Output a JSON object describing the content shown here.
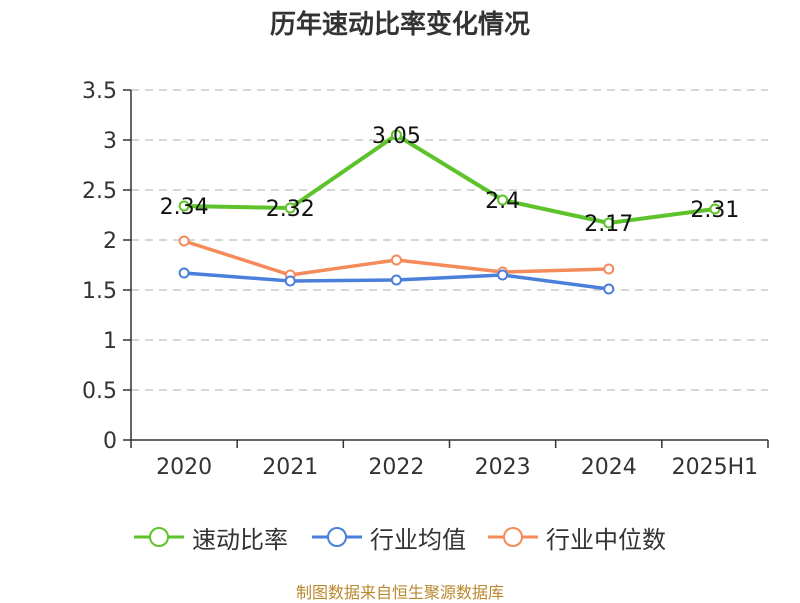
{
  "chart_data": {
    "type": "line",
    "title": "历年速动比率变化情况",
    "categories": [
      "2020",
      "2021",
      "2022",
      "2023",
      "2024",
      "2025H1"
    ],
    "yticks": [
      "0",
      "0.5",
      "1",
      "1.5",
      "2",
      "2.5",
      "3",
      "3.5"
    ],
    "ylim": [
      0,
      3.5
    ],
    "grid": true,
    "legend_position": "bottom",
    "series": [
      {
        "name": "速动比率",
        "color": "#5ec22a",
        "values": [
          2.34,
          2.32,
          3.05,
          2.4,
          2.17,
          2.31
        ],
        "data_labels": [
          "2.34",
          "2.32",
          "3.05",
          "2.4",
          "2.17",
          "2.31"
        ]
      },
      {
        "name": "行业均值",
        "color": "#4a7fdb",
        "values": [
          1.67,
          1.59,
          1.6,
          1.65,
          1.51,
          null
        ]
      },
      {
        "name": "行业中位数",
        "color": "#f58b5a",
        "values": [
          1.99,
          1.65,
          1.8,
          1.68,
          1.71,
          null
        ]
      }
    ]
  },
  "footer": {
    "source": "制图数据来自恒生聚源数据库"
  }
}
